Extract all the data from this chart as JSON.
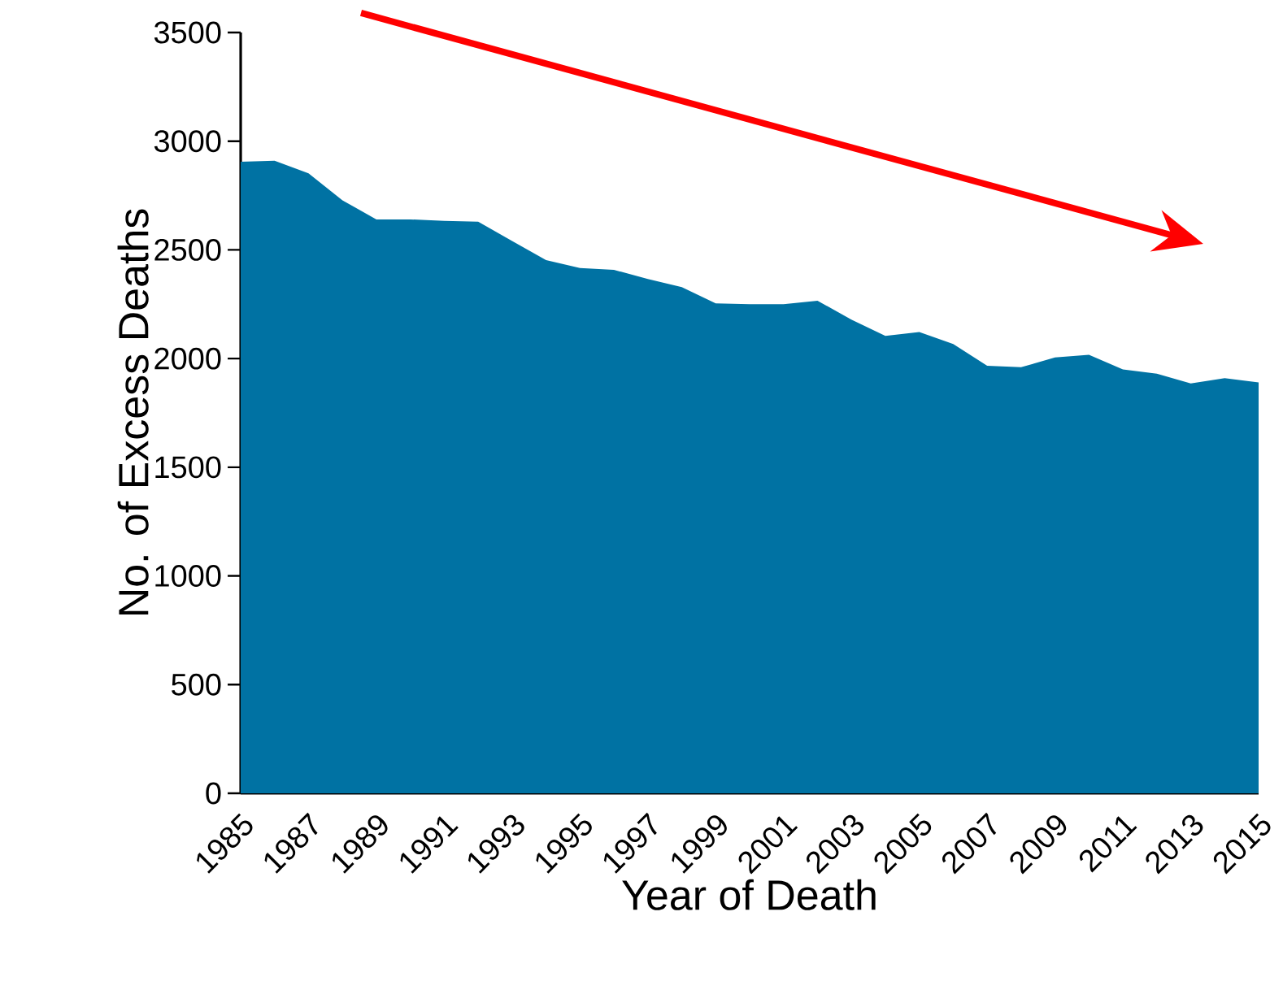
{
  "chart_data": {
    "type": "area",
    "xlabel": "Year of Death",
    "ylabel": "No. of Excess Deaths",
    "x": [
      1985,
      1986,
      1987,
      1988,
      1989,
      1990,
      1991,
      1992,
      1993,
      1994,
      1995,
      1996,
      1997,
      1998,
      1999,
      2000,
      2001,
      2002,
      2003,
      2004,
      2005,
      2006,
      2007,
      2008,
      2009,
      2010,
      2011,
      2012,
      2013,
      2014,
      2015
    ],
    "values": [
      2905,
      2910,
      2852,
      2728,
      2640,
      2640,
      2633,
      2630,
      2541,
      2453,
      2416,
      2408,
      2366,
      2329,
      2254,
      2250,
      2250,
      2266,
      2179,
      2104,
      2122,
      2067,
      1967,
      1960,
      2005,
      2017,
      1950,
      1930,
      1885,
      1910,
      1890
    ],
    "color": "#0072a3",
    "xlim": [
      1985,
      2015
    ],
    "ylim": [
      0,
      3500
    ],
    "xticks": [
      1985,
      1987,
      1989,
      1991,
      1993,
      1995,
      1997,
      1999,
      2001,
      2003,
      2005,
      2007,
      2009,
      2011,
      2013,
      2015
    ],
    "yticks": [
      0,
      500,
      1000,
      1500,
      2000,
      2500,
      3000,
      3500
    ],
    "grid": false
  }
}
